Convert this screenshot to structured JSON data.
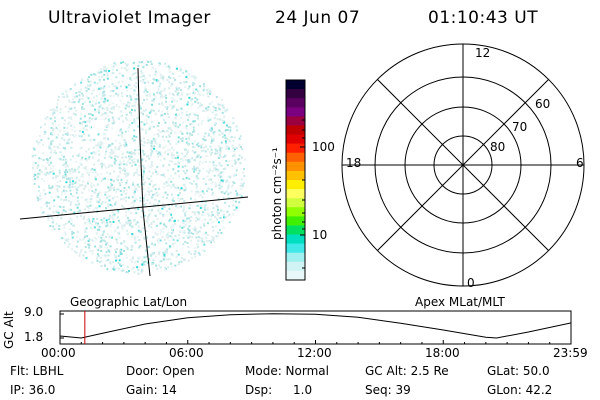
{
  "header": {
    "title": "Ultraviolet Imager",
    "date": "24 Jun 07",
    "time": "01:10:43 UT"
  },
  "colorbar": {
    "unit_label": "photon cm⁻²s⁻¹",
    "ticks": [
      "100",
      "10"
    ],
    "colors": [
      "#000030",
      "#330040",
      "#5a0060",
      "#7a0080",
      "#9a0040",
      "#c00000",
      "#e00000",
      "#ff2000",
      "#ff6000",
      "#ff9000",
      "#ffc000",
      "#ffee00",
      "#ffff60",
      "#d0ff40",
      "#90ff00",
      "#40f000",
      "#00e060",
      "#00e0c0",
      "#40e8e8",
      "#a0f0f0",
      "#d0f4f4",
      "#e8f8f8"
    ]
  },
  "polar_plot": {
    "mlt_labels": [
      "12",
      "18",
      "6",
      "0"
    ],
    "lat_labels": [
      "60",
      "70",
      "80"
    ]
  },
  "timeline": {
    "left_label": "Geographic Lat/Lon",
    "right_label": "Apex MLat/MLT",
    "y_axis_label": "GC Alt",
    "y_ticks": [
      "9.0",
      "1.8"
    ],
    "x_ticks": [
      "00:00",
      "06:00",
      "12:00",
      "18:00",
      "23:59"
    ],
    "marker_time": "01:10",
    "orbit_curve": [
      {
        "t": 0.0,
        "alt": 2.4
      },
      {
        "t": 1.0,
        "alt": 1.8
      },
      {
        "t": 2.0,
        "alt": 3.2
      },
      {
        "t": 4.0,
        "alt": 6.0
      },
      {
        "t": 6.0,
        "alt": 7.9
      },
      {
        "t": 8.0,
        "alt": 8.8
      },
      {
        "t": 10.0,
        "alt": 9.1
      },
      {
        "t": 12.0,
        "alt": 8.9
      },
      {
        "t": 14.0,
        "alt": 8.0
      },
      {
        "t": 16.0,
        "alt": 6.2
      },
      {
        "t": 18.0,
        "alt": 4.2
      },
      {
        "t": 20.0,
        "alt": 2.0
      },
      {
        "t": 20.5,
        "alt": 1.8
      },
      {
        "t": 22.0,
        "alt": 3.6
      },
      {
        "t": 23.98,
        "alt": 6.3
      }
    ]
  },
  "info": {
    "flt": "Flt: LBHL",
    "door": "Door: Open",
    "mode": "Mode: Normal",
    "gc_alt": "GC Alt: 2.5 Re",
    "glat": "GLat: 50.0",
    "ip": "IP: 36.0",
    "gain": "Gain: 14",
    "dsp_label": "Dsp:",
    "dsp_value": "1.0",
    "seq": "Seq: 39",
    "glon": "GLon:  42.2"
  }
}
